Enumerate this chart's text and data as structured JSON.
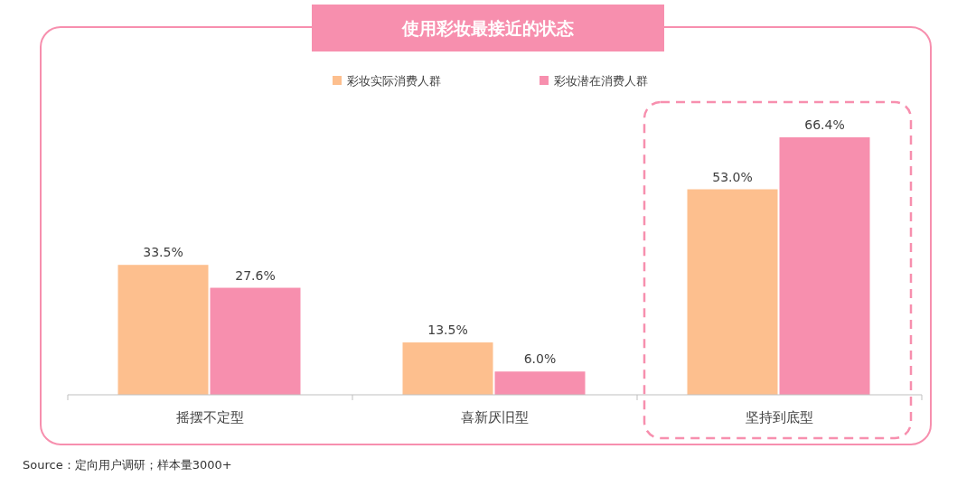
{
  "chart_data": {
    "type": "bar",
    "title": "使用彩妆最接近的状态",
    "categories": [
      "摇摆不定型",
      "喜新厌旧型",
      "坚持到底型"
    ],
    "series": [
      {
        "name": "彩妆实际消费人群",
        "color": "#fdbf8e",
        "values": [
          33.5,
          13.5,
          53.0
        ],
        "value_labels": [
          "33.5%",
          "13.5%",
          "53.0%"
        ]
      },
      {
        "name": "彩妆潜在消费人群",
        "color": "#f78fae",
        "values": [
          27.6,
          6.0,
          66.4
        ],
        "value_labels": [
          "27.6%",
          "6.0%",
          "66.4%"
        ]
      }
    ],
    "legend": "top",
    "annotations": [
      "Source：定向用户调研；样本量3000+"
    ]
  }
}
